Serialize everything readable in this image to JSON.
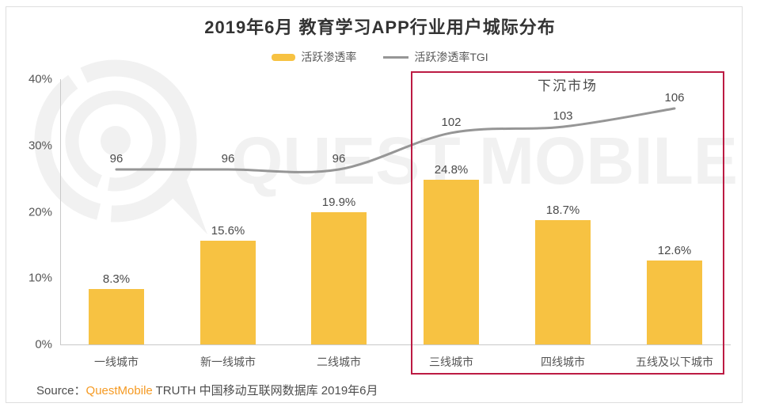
{
  "title": "2019年6月 教育学习APP行业用户城际分布",
  "legend": {
    "bar_label": "活跃渗透率",
    "line_label": "活跃渗透率TGI"
  },
  "watermark_text": "QUEST MOBILE",
  "colors": {
    "bar": "#F7C242",
    "line": "#969696",
    "highlight_box": "#BC1B43",
    "brand_orange": "#F59A23"
  },
  "source": {
    "prefix": "Source：",
    "brand": "QuestMobile",
    "suffix": " TRUTH 中国移动互联网数据库 2019年6月"
  },
  "chart_data": {
    "type": "bar",
    "categories": [
      "一线城市",
      "新一线城市",
      "二线城市",
      "三线城市",
      "四线城市",
      "五线及以下城市"
    ],
    "series": [
      {
        "name": "活跃渗透率",
        "type": "bar",
        "unit": "%",
        "values": [
          8.3,
          15.6,
          19.9,
          24.8,
          18.7,
          12.6
        ]
      },
      {
        "name": "活跃渗透率TGI",
        "type": "line",
        "values": [
          96,
          96,
          96,
          102,
          103,
          106
        ]
      }
    ],
    "y_ticks": [
      "0%",
      "10%",
      "20%",
      "30%",
      "40%"
    ],
    "ylim": [
      0,
      40
    ],
    "grid": false,
    "legend_position": "top-center",
    "highlight_region": {
      "label": "下沉市场",
      "categories": [
        "三线城市",
        "四线城市",
        "五线及以下城市"
      ]
    }
  }
}
